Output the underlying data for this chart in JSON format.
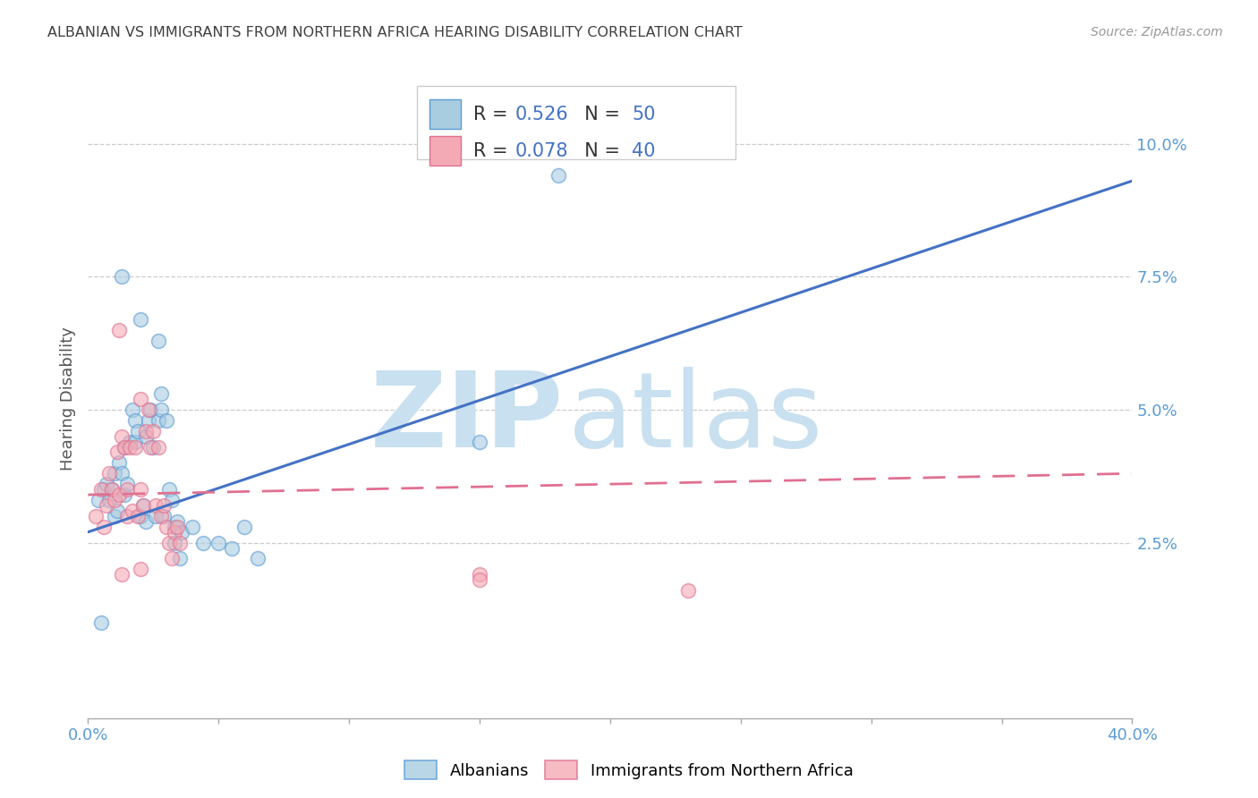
{
  "title": "ALBANIAN VS IMMIGRANTS FROM NORTHERN AFRICA HEARING DISABILITY CORRELATION CHART",
  "source": "Source: ZipAtlas.com",
  "ylabel": "Hearing Disability",
  "xlim": [
    0.0,
    0.4
  ],
  "ylim": [
    -0.008,
    0.112
  ],
  "yticks": [
    0.025,
    0.05,
    0.075,
    0.1
  ],
  "ytick_labels": [
    "2.5%",
    "5.0%",
    "7.5%",
    "10.0%"
  ],
  "blue_face": "#a8cce0",
  "blue_edge": "#5b9bd5",
  "pink_face": "#f4aab5",
  "pink_edge": "#e07090",
  "blue_line": "#4472c4",
  "pink_line": "#e07090",
  "axis_color": "#5b9bd5",
  "title_color": "#404040",
  "source_color": "#999999",
  "watermark_zip_color": "#c8e0f0",
  "watermark_atlas_color": "#c8e0f0",
  "legend_text_color": "#333333",
  "legend_value_color": "#4472c4",
  "scatter_blue": [
    [
      0.004,
      0.033
    ],
    [
      0.006,
      0.035
    ],
    [
      0.007,
      0.036
    ],
    [
      0.008,
      0.033
    ],
    [
      0.009,
      0.035
    ],
    [
      0.01,
      0.03
    ],
    [
      0.01,
      0.038
    ],
    [
      0.011,
      0.031
    ],
    [
      0.012,
      0.04
    ],
    [
      0.013,
      0.038
    ],
    [
      0.014,
      0.034
    ],
    [
      0.014,
      0.043
    ],
    [
      0.015,
      0.036
    ],
    [
      0.016,
      0.044
    ],
    [
      0.017,
      0.05
    ],
    [
      0.018,
      0.048
    ],
    [
      0.018,
      0.044
    ],
    [
      0.019,
      0.046
    ],
    [
      0.02,
      0.03
    ],
    [
      0.021,
      0.032
    ],
    [
      0.022,
      0.029
    ],
    [
      0.022,
      0.045
    ],
    [
      0.023,
      0.048
    ],
    [
      0.024,
      0.05
    ],
    [
      0.025,
      0.043
    ],
    [
      0.026,
      0.03
    ],
    [
      0.027,
      0.048
    ],
    [
      0.028,
      0.05
    ],
    [
      0.029,
      0.03
    ],
    [
      0.03,
      0.048
    ],
    [
      0.031,
      0.035
    ],
    [
      0.032,
      0.033
    ],
    [
      0.033,
      0.028
    ],
    [
      0.033,
      0.025
    ],
    [
      0.034,
      0.029
    ],
    [
      0.035,
      0.022
    ],
    [
      0.036,
      0.027
    ],
    [
      0.04,
      0.028
    ],
    [
      0.044,
      0.025
    ],
    [
      0.05,
      0.025
    ],
    [
      0.055,
      0.024
    ],
    [
      0.06,
      0.028
    ],
    [
      0.065,
      0.022
    ],
    [
      0.013,
      0.075
    ],
    [
      0.02,
      0.067
    ],
    [
      0.027,
      0.063
    ],
    [
      0.028,
      0.053
    ],
    [
      0.18,
      0.094
    ],
    [
      0.15,
      0.044
    ],
    [
      0.005,
      0.01
    ]
  ],
  "scatter_pink": [
    [
      0.003,
      0.03
    ],
    [
      0.005,
      0.035
    ],
    [
      0.006,
      0.028
    ],
    [
      0.007,
      0.032
    ],
    [
      0.008,
      0.038
    ],
    [
      0.009,
      0.035
    ],
    [
      0.01,
      0.033
    ],
    [
      0.011,
      0.042
    ],
    [
      0.012,
      0.034
    ],
    [
      0.013,
      0.045
    ],
    [
      0.014,
      0.043
    ],
    [
      0.015,
      0.035
    ],
    [
      0.015,
      0.03
    ],
    [
      0.016,
      0.043
    ],
    [
      0.017,
      0.031
    ],
    [
      0.018,
      0.043
    ],
    [
      0.019,
      0.03
    ],
    [
      0.02,
      0.035
    ],
    [
      0.02,
      0.052
    ],
    [
      0.021,
      0.032
    ],
    [
      0.022,
      0.046
    ],
    [
      0.023,
      0.05
    ],
    [
      0.024,
      0.043
    ],
    [
      0.025,
      0.046
    ],
    [
      0.026,
      0.032
    ],
    [
      0.027,
      0.043
    ],
    [
      0.028,
      0.03
    ],
    [
      0.029,
      0.032
    ],
    [
      0.03,
      0.028
    ],
    [
      0.031,
      0.025
    ],
    [
      0.032,
      0.022
    ],
    [
      0.033,
      0.027
    ],
    [
      0.034,
      0.028
    ],
    [
      0.035,
      0.025
    ],
    [
      0.012,
      0.065
    ],
    [
      0.02,
      0.02
    ],
    [
      0.013,
      0.019
    ],
    [
      0.15,
      0.019
    ],
    [
      0.23,
      0.016
    ],
    [
      0.15,
      0.018
    ]
  ],
  "blue_trend": [
    0.0,
    0.027,
    0.4,
    0.093
  ],
  "pink_trend": [
    0.0,
    0.034,
    0.4,
    0.038
  ],
  "r_blue": "0.526",
  "n_blue": "50",
  "r_pink": "0.078",
  "n_pink": "40"
}
